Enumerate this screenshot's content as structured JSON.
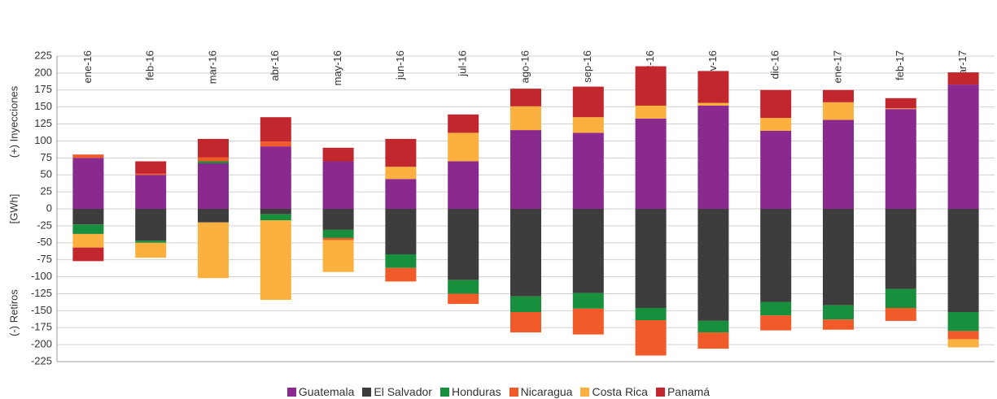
{
  "chart_data": {
    "type": "bar",
    "stacked": true,
    "ylabel_top": "(+) Inyecciones",
    "ylabel": "[GWh]",
    "ylabel_bottom": "(-) Retiros",
    "categories": [
      "ene-16",
      "feb-16",
      "mar-16",
      "abr-16",
      "may-16",
      "jun-16",
      "jul-16",
      "ago-16",
      "sep-16",
      "oct-16",
      "nov-16",
      "dic-16",
      "ene-17",
      "feb-17",
      "mar-17"
    ],
    "series": [
      {
        "name": "Guatemala",
        "color": "#8b2a8e",
        "values": [
          75,
          50,
          67,
          92,
          70,
          44,
          70,
          116,
          112,
          133,
          152,
          115,
          131,
          147,
          183
        ]
      },
      {
        "name": "El Salvador",
        "color": "#3d3d3d",
        "values": [
          -23,
          -47,
          -20,
          -8,
          -31,
          -67,
          -105,
          -129,
          -124,
          -146,
          -165,
          -137,
          -142,
          -118,
          -152
        ]
      },
      {
        "name": "Honduras",
        "color": "#178f3c",
        "values": [
          -14,
          -3,
          3,
          -9,
          -12,
          -20,
          -20,
          -23,
          -23,
          -18,
          -17,
          -20,
          -21,
          -28,
          -28
        ]
      },
      {
        "name": "Nicaragua",
        "color": "#f15a29",
        "values": [
          5,
          2,
          6,
          7,
          -3,
          -20,
          -15,
          -30,
          -38,
          -52,
          -24,
          -22,
          -15,
          -19,
          -12
        ]
      },
      {
        "name": "Costa Rica",
        "color": "#fbb040",
        "values": [
          -20,
          -22,
          -82,
          -117,
          -47,
          18,
          42,
          35,
          23,
          19,
          4,
          19,
          26,
          1,
          -12
        ]
      },
      {
        "name": "Panamá",
        "color": "#c1272d",
        "values": [
          -20,
          18,
          27,
          36,
          20,
          41,
          27,
          26,
          45,
          58,
          47,
          41,
          18,
          15,
          18
        ]
      }
    ],
    "ylim": [
      -225,
      225
    ],
    "yticks": [
      -225,
      -200,
      -175,
      -150,
      -125,
      -100,
      -75,
      -50,
      -25,
      0,
      25,
      50,
      75,
      100,
      125,
      150,
      175,
      200,
      225
    ],
    "grid": true,
    "legend": "bottom"
  }
}
